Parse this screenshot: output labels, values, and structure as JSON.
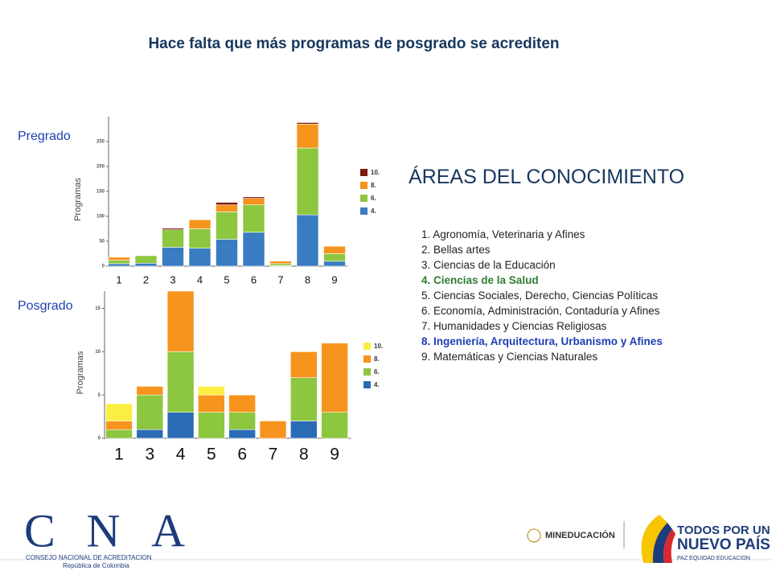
{
  "title": "Hace falta que más programas de posgrado se acrediten",
  "chart_data": [
    {
      "type": "stacked_bar",
      "title": "Pregrado",
      "y_label": "Programas",
      "categories": [
        "1",
        "2",
        "3",
        "4",
        "5",
        "6",
        "7",
        "8",
        "9"
      ],
      "series": [
        {
          "name": "4.",
          "color": "#3a7cc2",
          "values": [
            5,
            6,
            38,
            36,
            54,
            68,
            1,
            103,
            10
          ]
        },
        {
          "name": "6.",
          "color": "#8dc63f",
          "values": [
            7,
            15,
            35,
            39,
            55,
            55,
            4,
            134,
            15
          ]
        },
        {
          "name": "8.",
          "color": "#f7941d",
          "values": [
            6,
            0,
            0,
            18,
            14,
            13,
            5,
            48,
            15
          ]
        },
        {
          "name": "10.",
          "color": "#7a1a0c",
          "values": [
            0,
            0,
            3,
            0,
            5,
            3,
            0,
            3,
            0
          ]
        }
      ],
      "ylim": [
        0,
        300
      ],
      "yticks": [
        0,
        50,
        100,
        150,
        200,
        250
      ]
    },
    {
      "type": "stacked_bar",
      "title": "Posgrado",
      "y_label": "Programas",
      "categories": [
        "1",
        "3",
        "4",
        "5",
        "6",
        "7",
        "8",
        "9"
      ],
      "series": [
        {
          "name": "4.",
          "color": "#2a6bb5",
          "values": [
            0,
            1,
            3,
            0,
            1,
            0,
            2,
            0
          ]
        },
        {
          "name": "6.",
          "color": "#8dc63f",
          "values": [
            1,
            4,
            7,
            3,
            2,
            0,
            5,
            3
          ]
        },
        {
          "name": "8.",
          "color": "#f7941d",
          "values": [
            1,
            1,
            7,
            2,
            2,
            2,
            3,
            8
          ]
        },
        {
          "name": "10.",
          "color": "#fbee43",
          "values": [
            2,
            0,
            0,
            1,
            0,
            0,
            0,
            0
          ]
        }
      ],
      "ylim": [
        0,
        17
      ],
      "yticks": [
        0,
        5,
        10,
        15
      ]
    }
  ],
  "areas": {
    "title": "ÁREAS DEL CONOCIMIENTO",
    "items": [
      "1. Agronomía, Veterinaria y Afines",
      "2. Bellas artes",
      "3. Ciencias de la Educación",
      "4. Ciencias de la Salud",
      "5. Ciencias Sociales, Derecho, Ciencias Políticas",
      "6. Economía, Administración, Contaduría y Afines",
      "7. Humanidades y Ciencias Religiosas",
      "8. Ingeniería, Arquitectura, Urbanismo y Afines",
      "9. Matemáticas y Ciencias Naturales"
    ]
  },
  "footer": {
    "cna": "CNA",
    "cna_name": "CONSEJO NACIONAL DE ACREDITACION",
    "cna_country": "República de Colombia",
    "mineducacion": "MINEDUCACIÓN",
    "gov_line1": "TODOS POR UN",
    "gov_line2": "NUEVO PAÍS",
    "gov_line3": "PAZ  EQUIDAD  EDUCACION"
  }
}
